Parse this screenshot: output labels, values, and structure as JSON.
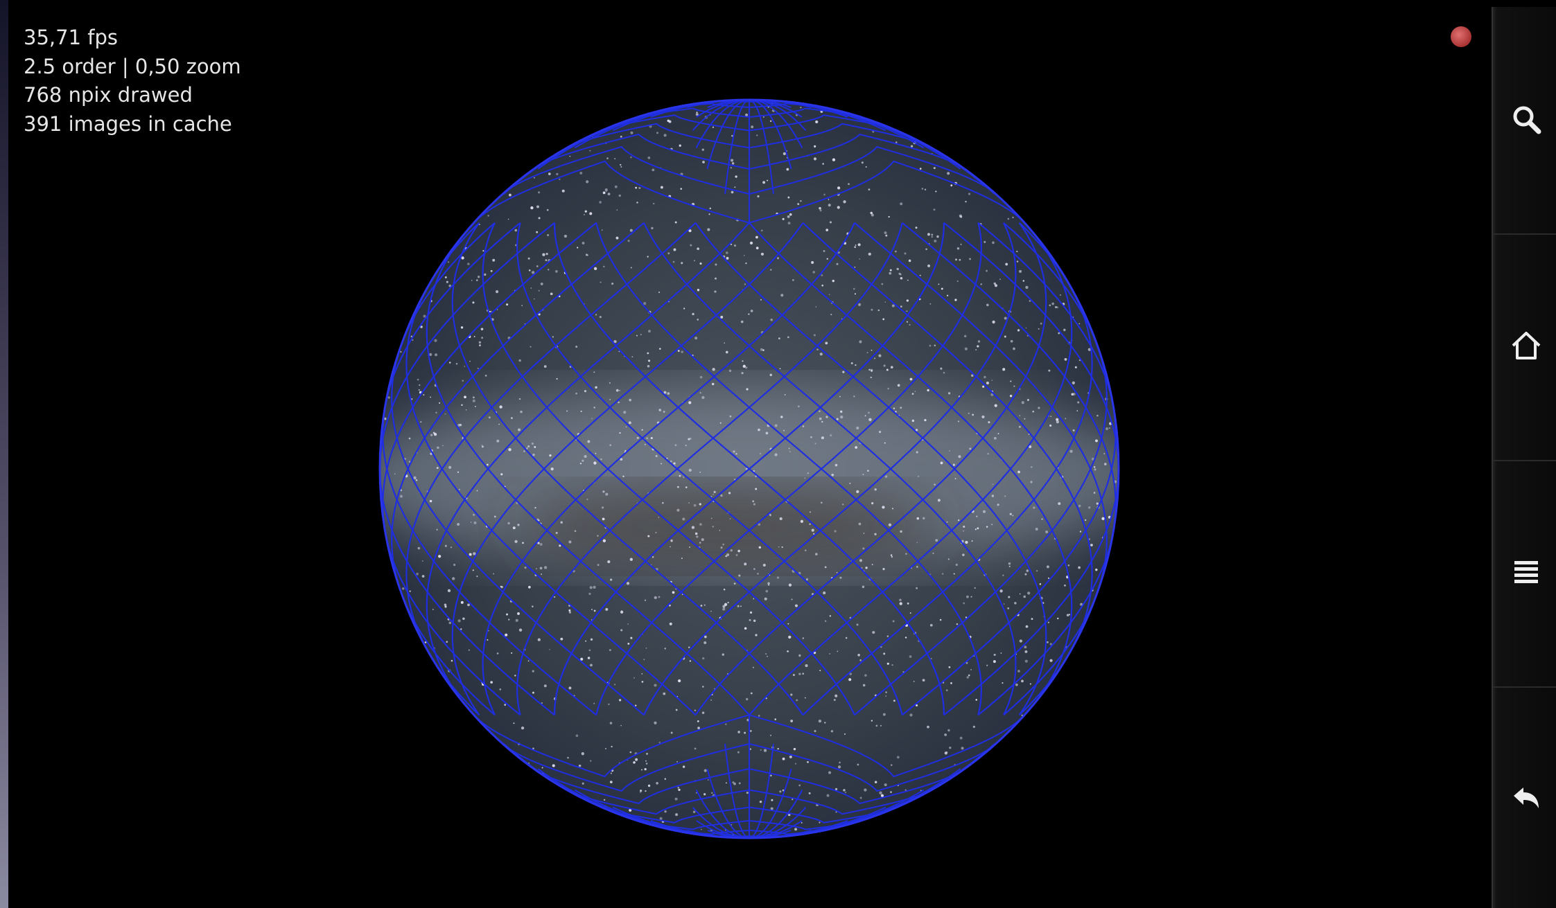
{
  "overlay": {
    "lines": [
      "35,71 fps",
      "2.5 order | 0,50 zoom",
      "768 npix drawed",
      "391 images in cache"
    ]
  }
}
